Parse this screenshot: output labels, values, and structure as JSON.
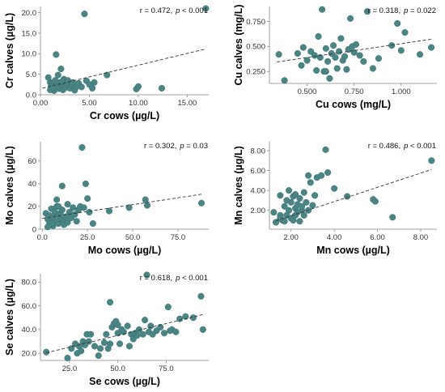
{
  "colors": {
    "point": "#4a8585",
    "point_stroke": "#3b6f6f",
    "trend": "#333333",
    "axis": "#888888"
  },
  "chart_data": [
    {
      "id": "cr",
      "type": "scatter",
      "xlabel": "Cr cows (µg/L)",
      "ylabel": "Cr calves (µg/L)",
      "xlim": [
        0,
        17.2
      ],
      "ylim": [
        0,
        21.5
      ],
      "xticks": [
        0,
        5,
        10,
        15
      ],
      "xtick_labels": [
        "0.00",
        "5.00",
        "10.00",
        "15.00"
      ],
      "yticks": [
        0,
        5,
        10,
        15,
        20
      ],
      "ytick_labels": [
        "0.0",
        "5.0",
        "10.0",
        "15.0",
        "20.0"
      ],
      "annotation": {
        "r": "r = 0.472,",
        "p_italic": "p",
        "p_rest": " < 0.001"
      },
      "trend": [
        [
          0.2,
          1.6
        ],
        [
          16.8,
          11.1
        ]
      ],
      "points": [
        [
          0.8,
          4.2
        ],
        [
          1.0,
          3.0
        ],
        [
          1.1,
          2.2
        ],
        [
          1.2,
          1.5
        ],
        [
          1.3,
          2.8
        ],
        [
          1.4,
          1.0
        ],
        [
          1.5,
          3.5
        ],
        [
          1.6,
          9.8
        ],
        [
          1.7,
          2.0
        ],
        [
          1.8,
          4.8
        ],
        [
          1.9,
          1.5
        ],
        [
          2.0,
          3.0
        ],
        [
          2.1,
          6.3
        ],
        [
          2.2,
          2.5
        ],
        [
          2.3,
          1.2
        ],
        [
          2.4,
          3.8
        ],
        [
          2.5,
          2.2
        ],
        [
          2.6,
          1.8
        ],
        [
          2.7,
          2.9
        ],
        [
          2.8,
          3.5
        ],
        [
          3.0,
          1.6
        ],
        [
          3.2,
          2.4
        ],
        [
          3.3,
          3.0
        ],
        [
          3.5,
          1.1
        ],
        [
          3.7,
          2.0
        ],
        [
          3.9,
          2.8
        ],
        [
          4.2,
          1.9
        ],
        [
          4.5,
          19.7
        ],
        [
          4.7,
          3.4
        ],
        [
          5.0,
          2.5
        ],
        [
          5.3,
          1.6
        ],
        [
          5.5,
          3.0
        ],
        [
          6.8,
          4.8
        ],
        [
          9.8,
          1.4
        ],
        [
          10.0,
          2.0
        ],
        [
          12.4,
          1.6
        ],
        [
          16.9,
          21.0
        ],
        [
          1.0,
          1.2
        ],
        [
          1.3,
          1.8
        ],
        [
          2.2,
          3.2
        ]
      ]
    },
    {
      "id": "cu",
      "type": "scatter",
      "xlabel": "Cu cows (mg/L)",
      "ylabel": "Cu calves (mg/L)",
      "xlim": [
        0.3,
        1.19
      ],
      "ylim": [
        0.13,
        0.9
      ],
      "xticks": [
        0.5,
        0.75,
        1.0
      ],
      "xtick_labels": [
        "0.500",
        "0.750",
        "1.000"
      ],
      "yticks": [
        0.25,
        0.5,
        0.75
      ],
      "ytick_labels": [
        "0.250",
        "0.500",
        "0.750"
      ],
      "annotation": {
        "r": "r = 0.318,",
        "p_italic": "p",
        "p_rest": " = 0.022"
      },
      "trend": [
        [
          0.34,
          0.345
        ],
        [
          1.17,
          0.575
        ]
      ],
      "points": [
        [
          0.35,
          0.42
        ],
        [
          0.38,
          0.16
        ],
        [
          0.45,
          0.43
        ],
        [
          0.47,
          0.31
        ],
        [
          0.48,
          0.49
        ],
        [
          0.5,
          0.36
        ],
        [
          0.52,
          0.45
        ],
        [
          0.54,
          0.41
        ],
        [
          0.55,
          0.26
        ],
        [
          0.56,
          0.6
        ],
        [
          0.57,
          0.39
        ],
        [
          0.58,
          0.87
        ],
        [
          0.59,
          0.25
        ],
        [
          0.6,
          0.48
        ],
        [
          0.61,
          0.35
        ],
        [
          0.62,
          0.18
        ],
        [
          0.63,
          0.43
        ],
        [
          0.64,
          0.51
        ],
        [
          0.65,
          0.39
        ],
        [
          0.66,
          0.28
        ],
        [
          0.67,
          0.45
        ],
        [
          0.68,
          0.58
        ],
        [
          0.69,
          0.36
        ],
        [
          0.7,
          0.4
        ],
        [
          0.71,
          0.27
        ],
        [
          0.72,
          0.47
        ],
        [
          0.73,
          0.78
        ],
        [
          0.74,
          0.5
        ],
        [
          0.75,
          0.44
        ],
        [
          0.76,
          0.52
        ],
        [
          0.78,
          0.41
        ],
        [
          0.8,
          0.35
        ],
        [
          0.82,
          0.85
        ],
        [
          0.85,
          0.28
        ],
        [
          0.88,
          0.38
        ],
        [
          0.95,
          0.51
        ],
        [
          0.98,
          0.73
        ],
        [
          1.0,
          0.46
        ],
        [
          1.02,
          0.64
        ],
        [
          1.1,
          0.42
        ],
        [
          1.16,
          0.49
        ],
        [
          0.6,
          0.25
        ]
      ]
    },
    {
      "id": "mo",
      "type": "scatter",
      "xlabel": "Mo cows (µg/L)",
      "ylabel": "Mo calves (µg/L)",
      "xlim": [
        -1,
        92
      ],
      "ylim": [
        0,
        77
      ],
      "xticks": [
        0,
        25,
        50,
        75
      ],
      "xtick_labels": [
        "0.0",
        "25.0",
        "50.0",
        "75.0"
      ],
      "yticks": [
        0,
        20,
        40,
        60
      ],
      "ytick_labels": [
        "0",
        "20",
        "40",
        "60"
      ],
      "annotation": {
        "r": "r = 0.302,",
        "p_italic": "p",
        "p_rest": " = 0.03"
      },
      "trend": [
        [
          0,
          9.6
        ],
        [
          89,
          31.0
        ]
      ],
      "points": [
        [
          2,
          14
        ],
        [
          3,
          9
        ],
        [
          4,
          6
        ],
        [
          4,
          12
        ],
        [
          5,
          18
        ],
        [
          6,
          3
        ],
        [
          6,
          10
        ],
        [
          7,
          7
        ],
        [
          7,
          15
        ],
        [
          8,
          20
        ],
        [
          8,
          26
        ],
        [
          9,
          5
        ],
        [
          9,
          12
        ],
        [
          10,
          9
        ],
        [
          10,
          14
        ],
        [
          11,
          38
        ],
        [
          11,
          17
        ],
        [
          12,
          8
        ],
        [
          12,
          4
        ],
        [
          13,
          11
        ],
        [
          14,
          22
        ],
        [
          14,
          6
        ],
        [
          15,
          15
        ],
        [
          16,
          10
        ],
        [
          17,
          19
        ],
        [
          18,
          13
        ],
        [
          19,
          7
        ],
        [
          20,
          17
        ],
        [
          21,
          20
        ],
        [
          22,
          72
        ],
        [
          23,
          19
        ],
        [
          24,
          40
        ],
        [
          25,
          27
        ],
        [
          26,
          15
        ],
        [
          28,
          5
        ],
        [
          37,
          16
        ],
        [
          48,
          19
        ],
        [
          57,
          26
        ],
        [
          58,
          21
        ],
        [
          88,
          23
        ],
        [
          3,
          2
        ],
        [
          5,
          5
        ],
        [
          9,
          20
        ]
      ]
    },
    {
      "id": "mn",
      "type": "scatter",
      "xlabel": "Mn cows (µg/L)",
      "ylabel": "Mn calves (µg/L)",
      "xlim": [
        1.0,
        8.75
      ],
      "ylim": [
        0.1,
        8.9
      ],
      "xticks": [
        2,
        4,
        6,
        8
      ],
      "xtick_labels": [
        "2.00",
        "4.00",
        "6.00",
        "8.00"
      ],
      "yticks": [
        2,
        4,
        6,
        8
      ],
      "ytick_labels": [
        "2.00",
        "4.00",
        "6.00",
        "8.00"
      ],
      "annotation": {
        "r": "r = 0.486,",
        "p_italic": "p",
        "p_rest": " < 0.001"
      },
      "trend": [
        [
          1.3,
          0.95
        ],
        [
          8.5,
          6.1
        ]
      ],
      "points": [
        [
          1.2,
          1.8
        ],
        [
          1.3,
          0.8
        ],
        [
          1.5,
          1.5
        ],
        [
          1.5,
          3.5
        ],
        [
          1.6,
          1.0
        ],
        [
          1.7,
          2.4
        ],
        [
          1.7,
          0.9
        ],
        [
          1.8,
          3.0
        ],
        [
          1.8,
          1.5
        ],
        [
          1.9,
          2.0
        ],
        [
          1.9,
          4.0
        ],
        [
          2.0,
          1.2
        ],
        [
          2.0,
          2.8
        ],
        [
          2.1,
          1.0
        ],
        [
          2.1,
          3.4
        ],
        [
          2.2,
          2.2
        ],
        [
          2.2,
          1.5
        ],
        [
          2.3,
          2.6
        ],
        [
          2.3,
          1.8
        ],
        [
          2.4,
          3.2
        ],
        [
          2.4,
          0.9
        ],
        [
          2.5,
          2.0
        ],
        [
          2.5,
          2.4
        ],
        [
          2.6,
          1.5
        ],
        [
          2.6,
          3.8
        ],
        [
          2.7,
          2.8
        ],
        [
          2.8,
          5.5
        ],
        [
          2.8,
          2.0
        ],
        [
          2.9,
          4.8
        ],
        [
          3.0,
          2.5
        ],
        [
          3.1,
          3.5
        ],
        [
          3.2,
          5.3
        ],
        [
          3.4,
          5.5
        ],
        [
          3.6,
          8.1
        ],
        [
          3.7,
          5.8
        ],
        [
          4.0,
          4.2
        ],
        [
          4.6,
          3.4
        ],
        [
          5.8,
          3.1
        ],
        [
          5.9,
          2.9
        ],
        [
          6.7,
          1.3
        ],
        [
          8.5,
          7.0
        ],
        [
          2.2,
          3.6
        ],
        [
          1.5,
          1.2
        ]
      ]
    },
    {
      "id": "se",
      "type": "scatter",
      "xlabel": "Se cows (µg/L)",
      "ylabel": "Se calves (µg/L)",
      "xlim": [
        10,
        97
      ],
      "ylim": [
        14,
        87
      ],
      "xticks": [
        25,
        50,
        75
      ],
      "xtick_labels": [
        "25.0",
        "50.0",
        "75.0"
      ],
      "yticks": [
        20,
        40,
        60,
        80
      ],
      "ytick_labels": [
        "20.0",
        "40.0",
        "60.0",
        "80.0"
      ],
      "annotation": {
        "r": "r = 0.618,",
        "p_italic": "p",
        "p_rest": " < 0.001"
      },
      "trend": [
        [
          13,
          20.4
        ],
        [
          95,
          53.0
        ]
      ],
      "points": [
        [
          13,
          21
        ],
        [
          24,
          16
        ],
        [
          26,
          24
        ],
        [
          28,
          28
        ],
        [
          29,
          20
        ],
        [
          30,
          26
        ],
        [
          31,
          22
        ],
        [
          32,
          30
        ],
        [
          33,
          27
        ],
        [
          34,
          36
        ],
        [
          35,
          30
        ],
        [
          36,
          36
        ],
        [
          38,
          26
        ],
        [
          40,
          18
        ],
        [
          41,
          24
        ],
        [
          43,
          29
        ],
        [
          44,
          36
        ],
        [
          45,
          24
        ],
        [
          46,
          28
        ],
        [
          46,
          63
        ],
        [
          47,
          42
        ],
        [
          48,
          45
        ],
        [
          49,
          47
        ],
        [
          50,
          37
        ],
        [
          51,
          28
        ],
        [
          52,
          40
        ],
        [
          53,
          38
        ],
        [
          55,
          43
        ],
        [
          56,
          26
        ],
        [
          57,
          36
        ],
        [
          58,
          32
        ],
        [
          59,
          37
        ],
        [
          60,
          35
        ],
        [
          61,
          40
        ],
        [
          63,
          36
        ],
        [
          64,
          48
        ],
        [
          65,
          86
        ],
        [
          66,
          38
        ],
        [
          67,
          43
        ],
        [
          68,
          36
        ],
        [
          70,
          39
        ],
        [
          72,
          42
        ],
        [
          74,
          37
        ],
        [
          76,
          59
        ],
        [
          77,
          39
        ],
        [
          78,
          40
        ],
        [
          80,
          38
        ],
        [
          82,
          49
        ],
        [
          85,
          51
        ],
        [
          89,
          50
        ],
        [
          93,
          68
        ],
        [
          94,
          40
        ],
        [
          50,
          44
        ]
      ]
    }
  ]
}
